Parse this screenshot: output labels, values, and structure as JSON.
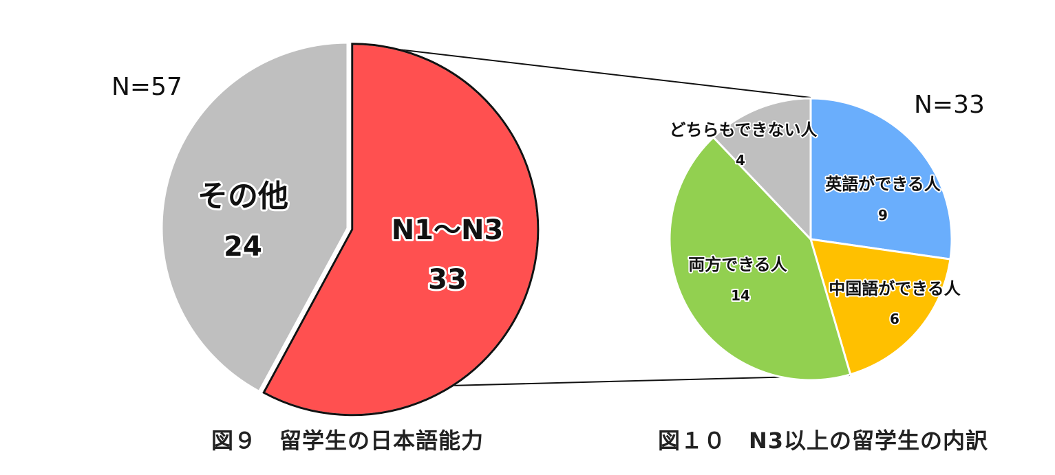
{
  "chart_data": [
    {
      "type": "pie",
      "title": "図９　留学生の日本語能力",
      "n_label": "N=57",
      "slices": [
        {
          "label": "N1〜N3",
          "value": 33,
          "color": "#ff5050"
        },
        {
          "label": "その他",
          "value": 24,
          "color": "#bfbfbf"
        }
      ]
    },
    {
      "type": "pie",
      "title": "図１０　N3以上の留学生の内訳",
      "n_label": "N=33",
      "slices": [
        {
          "label": "英語ができる人",
          "value": 9,
          "color": "#6aaefc"
        },
        {
          "label": "中国語ができる人",
          "value": 6,
          "color": "#ffc000"
        },
        {
          "label": "両方できる人",
          "value": 14,
          "color": "#92d050"
        },
        {
          "label": "どちらもできない人",
          "value": 4,
          "color": "#bfbfbf"
        }
      ]
    }
  ]
}
